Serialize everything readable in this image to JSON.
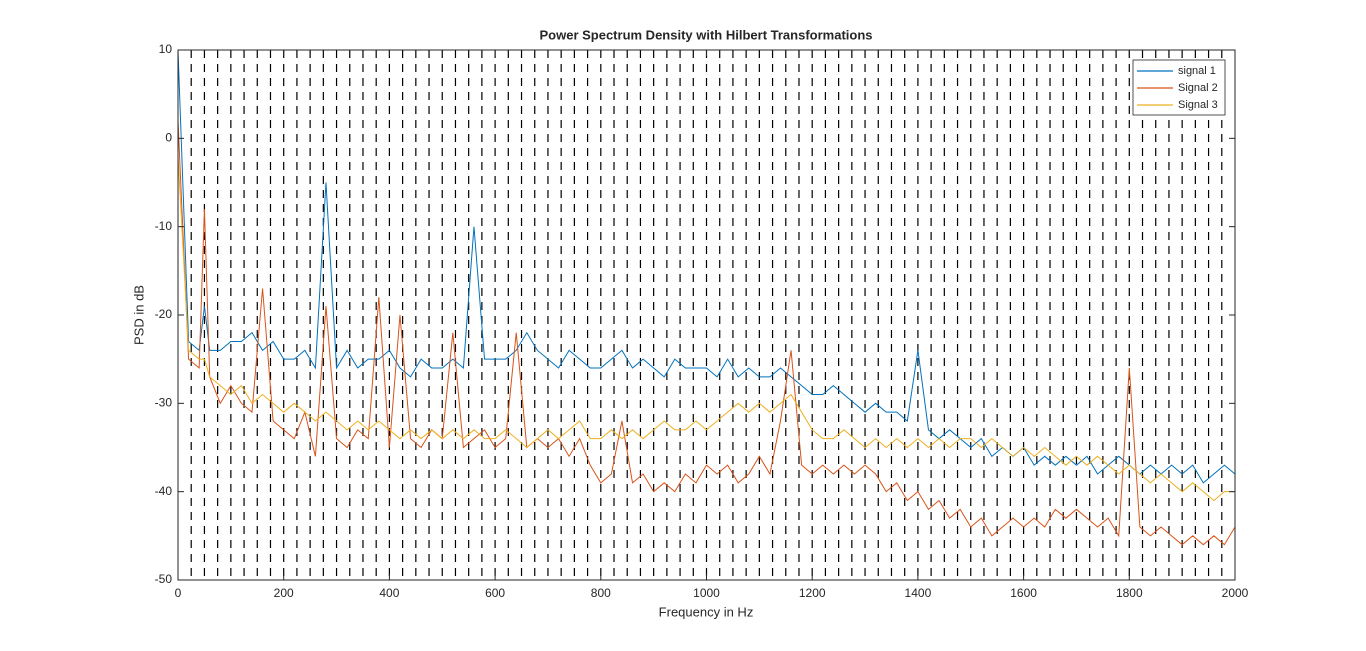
{
  "chart_data": {
    "type": "line",
    "title": "Power Spectrum Density with Hilbert Transformations",
    "xlabel": "Frequency in Hz",
    "ylabel": "PSD in dB",
    "x": [
      0,
      20,
      40,
      50,
      60,
      80,
      100,
      120,
      140,
      160,
      180,
      200,
      220,
      240,
      260,
      280,
      300,
      320,
      340,
      360,
      380,
      400,
      420,
      440,
      460,
      480,
      500,
      520,
      540,
      560,
      580,
      600,
      620,
      640,
      660,
      680,
      700,
      720,
      740,
      760,
      780,
      800,
      820,
      840,
      860,
      880,
      900,
      920,
      940,
      960,
      980,
      1000,
      1020,
      1040,
      1060,
      1080,
      1100,
      1120,
      1140,
      1160,
      1180,
      1200,
      1220,
      1240,
      1260,
      1280,
      1300,
      1320,
      1340,
      1360,
      1380,
      1400,
      1420,
      1440,
      1460,
      1480,
      1500,
      1520,
      1540,
      1560,
      1580,
      1600,
      1620,
      1640,
      1660,
      1680,
      1700,
      1720,
      1740,
      1760,
      1780,
      1800,
      1820,
      1840,
      1860,
      1880,
      1900,
      1920,
      1940,
      1960,
      1980,
      2000
    ],
    "series": [
      {
        "name": "signal 1",
        "color": "#0072BD",
        "values": [
          10,
          -23,
          -24,
          -19,
          -24,
          -24,
          -23,
          -23,
          -22,
          -24,
          -23,
          -25,
          -25,
          -24,
          -26,
          -5,
          -26,
          -24,
          -26,
          -25,
          -25,
          -24,
          -26,
          -27,
          -25,
          -26,
          -26,
          -25,
          -26,
          -10,
          -25,
          -25,
          -25,
          -24,
          -22,
          -24,
          -25,
          -26,
          -24,
          -25,
          -26,
          -26,
          -25,
          -24,
          -26,
          -25,
          -26,
          -27,
          -25,
          -26,
          -26,
          -26,
          -27,
          -25,
          -27,
          -26,
          -27,
          -27,
          -26,
          -27,
          -28,
          -29,
          -29,
          -28,
          -29,
          -30,
          -31,
          -30,
          -31,
          -31,
          -32,
          -24,
          -33,
          -34,
          -33,
          -34,
          -35,
          -34,
          -36,
          -35,
          -36,
          -35,
          -37,
          -36,
          -37,
          -36,
          -37,
          -36,
          -38,
          -37,
          -36,
          -37,
          -38,
          -37,
          -38,
          -37,
          -38,
          -37,
          -39,
          -38,
          -37,
          -38
        ]
      },
      {
        "name": "Signal 2",
        "color": "#D95319",
        "values": [
          2,
          -25,
          -26,
          -8,
          -27,
          -30,
          -28,
          -30,
          -31,
          -17,
          -32,
          -33,
          -34,
          -31,
          -36,
          -19,
          -34,
          -35,
          -33,
          -34,
          -18,
          -35,
          -20,
          -34,
          -35,
          -33,
          -34,
          -22,
          -35,
          -34,
          -33,
          -35,
          -34,
          -22,
          -35,
          -34,
          -35,
          -34,
          -36,
          -34,
          -37,
          -39,
          -38,
          -32,
          -39,
          -38,
          -40,
          -39,
          -40,
          -38,
          -39,
          -37,
          -38,
          -37,
          -39,
          -38,
          -36,
          -38,
          -32,
          -24,
          -37,
          -38,
          -37,
          -38,
          -37,
          -38,
          -37,
          -38,
          -40,
          -39,
          -41,
          -40,
          -42,
          -41,
          -43,
          -42,
          -44,
          -43,
          -45,
          -44,
          -43,
          -44,
          -43,
          -44,
          -42,
          -43,
          -42,
          -43,
          -44,
          -43,
          -45,
          -26,
          -44,
          -45,
          -44,
          -45,
          -46,
          -45,
          -46,
          -45,
          -46,
          -44
        ]
      },
      {
        "name": "Signal 3",
        "color": "#EDB120",
        "values": [
          -2,
          -24,
          -25,
          -25,
          -27,
          -28,
          -29,
          -28,
          -30,
          -29,
          -30,
          -31,
          -30,
          -31,
          -32,
          -31,
          -32,
          -33,
          -32,
          -33,
          -32,
          -33,
          -34,
          -33,
          -34,
          -33,
          -34,
          -33,
          -34,
          -33,
          -34,
          -34,
          -33,
          -34,
          -35,
          -34,
          -33,
          -34,
          -33,
          -32,
          -34,
          -34,
          -33,
          -34,
          -33,
          -34,
          -33,
          -32,
          -33,
          -33,
          -32,
          -33,
          -32,
          -31,
          -30,
          -31,
          -30,
          -31,
          -30,
          -29,
          -31,
          -33,
          -34,
          -34,
          -33,
          -34,
          -35,
          -34,
          -35,
          -34,
          -35,
          -34,
          -35,
          -34,
          -35,
          -34,
          -34,
          -35,
          -34,
          -35,
          -36,
          -35,
          -36,
          -35,
          -36,
          -37,
          -36,
          -37,
          -36,
          -37,
          -38,
          -37,
          -38,
          -39,
          -38,
          -39,
          -40,
          -39,
          -40,
          -41,
          -40,
          -40
        ]
      }
    ],
    "xlim": [
      0,
      2000
    ],
    "ylim": [
      -50,
      10
    ],
    "xticks": [
      0,
      200,
      400,
      600,
      800,
      1000,
      1200,
      1400,
      1600,
      1800,
      2000
    ],
    "yticks": [
      -50,
      -40,
      -30,
      -20,
      -10,
      0,
      10
    ],
    "vlines": [
      25,
      50,
      75,
      100,
      125,
      150,
      175,
      200,
      225,
      250,
      275,
      300,
      325,
      350,
      375,
      400,
      425,
      450,
      475,
      500,
      525,
      550,
      575,
      600,
      625,
      650,
      675,
      700,
      725,
      750,
      775,
      800,
      825,
      850,
      875,
      900,
      925,
      950,
      975,
      1000,
      1025,
      1050,
      1075,
      1100,
      1125,
      1150,
      1175,
      1200,
      1225,
      1250,
      1275,
      1300,
      1325,
      1350,
      1375,
      1400,
      1425,
      1450,
      1475,
      1500,
      1525,
      1550,
      1575,
      1600,
      1625,
      1650,
      1675,
      1700,
      1725,
      1750,
      1775,
      1800,
      1825,
      1850,
      1875,
      1900,
      1925,
      1950,
      1975
    ],
    "vline_color": "#000000",
    "legend": "upper right"
  }
}
